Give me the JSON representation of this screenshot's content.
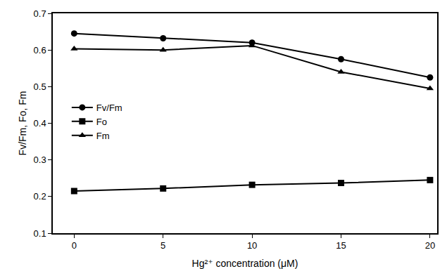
{
  "chart_data": {
    "type": "line",
    "x_label": "Hg²⁺ concentration (μM)",
    "y_label": "Fv/Fm, Fo, Fm",
    "x": [
      0,
      5,
      10,
      15,
      20
    ],
    "series": [
      {
        "name": "Fv/Fm",
        "color": "#000000",
        "marker": "circle",
        "line_style": "solid",
        "values": [
          0.645,
          0.632,
          0.62,
          0.575,
          0.525
        ]
      },
      {
        "name": "Fo",
        "color": "#000000",
        "marker": "square",
        "line_style": "solid",
        "values": [
          0.215,
          0.222,
          0.232,
          0.237,
          0.245
        ]
      },
      {
        "name": "Fm",
        "color": "#000000",
        "marker": "triangle-up",
        "line_style": "solid",
        "values": [
          0.603,
          0.6,
          0.612,
          0.54,
          0.495
        ]
      }
    ],
    "xlim": [
      -1.2,
      20.4
    ],
    "xticks": [
      0,
      5,
      10,
      15,
      20
    ],
    "ylim": [
      0.1,
      0.7
    ],
    "yticks": [
      0.1,
      0.2,
      0.3,
      0.4,
      0.5,
      0.6,
      0.7
    ],
    "grid": false,
    "legend": "left"
  }
}
